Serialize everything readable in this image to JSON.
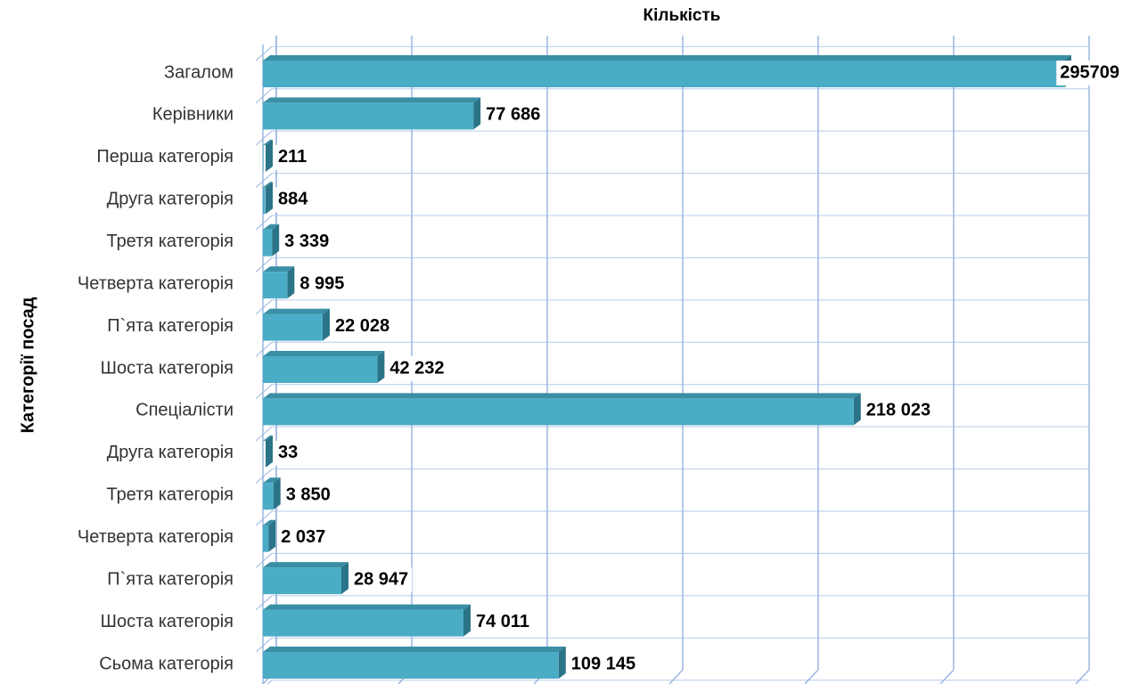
{
  "chart_data": {
    "type": "bar",
    "orientation": "horizontal",
    "title": "Кількість",
    "y_label": "Категорії посад",
    "categories": [
      "Загалом",
      "Керівники",
      "Перша категорія",
      "Друга категорія",
      "Третя категорія",
      "Четверта категорія",
      "П`ята категорія",
      "Шоста категорія",
      "Спеціалісти",
      "Друга категорія",
      "Третя категорія",
      "Четверта категорія",
      "П`ята категорія",
      "Шоста категорія",
      "Сьома категорія"
    ],
    "values": [
      295709,
      77686,
      211,
      884,
      3339,
      8995,
      22028,
      42232,
      218023,
      33,
      3850,
      2037,
      28947,
      74011,
      109145
    ],
    "value_labels": [
      "295709",
      "77 686",
      "211",
      "884",
      "3 339",
      "8 995",
      "22 028",
      "42 232",
      "218 023",
      "33",
      "3 850",
      "2 037",
      "28 947",
      "74 011",
      "109 145"
    ],
    "color": "#4bacc6",
    "xlim": [
      0,
      300000
    ],
    "xticks": [
      0,
      50000,
      100000,
      150000,
      200000,
      250000,
      300000
    ],
    "grid": true
  }
}
